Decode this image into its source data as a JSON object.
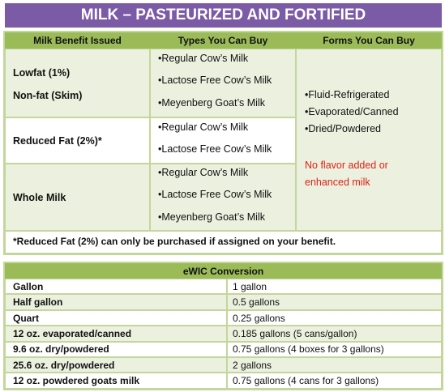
{
  "header": {
    "title": "MILK – PASTEURIZED AND FORTIFIED"
  },
  "table": {
    "columns": [
      "Milk Benefit Issued",
      "Types You Can Buy",
      "Forms You Can Buy"
    ],
    "rows": [
      {
        "benefit": [
          "Lowfat (1%)",
          "Non-fat (Skim)"
        ],
        "types": [
          "•Regular Cow’s Milk",
          "•Lactose Free Cow’s Milk",
          "•Meyenberg Goat’s Milk"
        ]
      },
      {
        "benefit": [
          "Reduced Fat (2%)*"
        ],
        "types": [
          "•Regular Cow’s Milk",
          "•Lactose Free Cow’s Milk"
        ]
      },
      {
        "benefit": [
          "Whole Milk"
        ],
        "types": [
          "•Regular Cow’s Milk",
          "•Lactose Free Cow’s Milk",
          "•Meyenberg Goat’s Milk"
        ]
      }
    ],
    "forms": [
      "•Fluid-Refrigerated",
      "•Evaporated/Canned",
      "•Dried/Powdered"
    ],
    "forms_note": [
      "No flavor added or",
      "enhanced milk"
    ],
    "note": "*Reduced Fat (2%) can only be purchased if assigned on your benefit."
  },
  "conversion": {
    "title": "eWIC Conversion",
    "rows": [
      [
        "Gallon",
        "1 gallon"
      ],
      [
        "Half gallon",
        "0.5 gallons"
      ],
      [
        "Quart",
        "0.25 gallons"
      ],
      [
        "12 oz. evaporated/canned",
        "0.185 gallons (5 cans/gallon)"
      ],
      [
        "9.6 oz. dry/powdered",
        "0.75 gallons (4 boxes for 3 gallons)"
      ],
      [
        "25.6 oz. dry/powdered",
        "2 gallons"
      ],
      [
        "12 oz. powdered goats milk",
        "0.75 gallons (4 cans for 3 gallons)"
      ]
    ]
  }
}
